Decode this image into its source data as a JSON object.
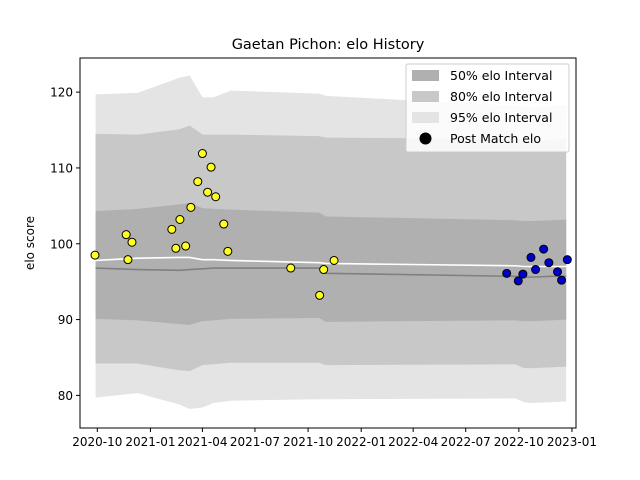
{
  "chart_data": {
    "type": "scatter",
    "title": "Gaetan Pichon: elo History",
    "xlabel": "",
    "ylabel": "elo score",
    "x_ticks": [
      "2020-10",
      "2021-01",
      "2021-04",
      "2021-07",
      "2021-10",
      "2022-01",
      "2022-04",
      "2022-07",
      "2022-10",
      "2023-01"
    ],
    "y_ticks": [
      80,
      90,
      100,
      110,
      120
    ],
    "xlim": [
      "2020-09-01",
      "2023-01-08"
    ],
    "ylim": [
      75.7,
      124.5
    ],
    "legend_position": "top-right",
    "legend": {
      "i50": "50% elo Interval",
      "i80": "80% elo Interval",
      "i95": "95% elo Interval",
      "post": "Post Match elo"
    },
    "colors": {
      "band50": "#b0b0b0",
      "band80": "#c8c8c8",
      "band95": "#e4e4e4",
      "mean_line": "#ffffff",
      "median_line": "#808080",
      "early_points": "#ffff22",
      "recent_points": "#0000cc"
    },
    "bands": {
      "dates": [
        "2020-09-28",
        "2020-12-10",
        "2021-02-20",
        "2021-03-10",
        "2021-04-01",
        "2021-04-20",
        "2021-05-20",
        "2021-10-20",
        "2021-11-01",
        "2022-09-25",
        "2022-10-10",
        "2022-10-25",
        "2022-11-25",
        "2022-12-22"
      ],
      "p95_hi": [
        119.7,
        119.9,
        121.9,
        122.2,
        119.3,
        119.3,
        120.2,
        119.8,
        119.5,
        118.2,
        118.1,
        118.0,
        118.2,
        118.3
      ],
      "p80_hi": [
        114.5,
        114.4,
        115.1,
        115.6,
        114.4,
        114.4,
        114.4,
        114.2,
        114.0,
        113.8,
        113.6,
        113.6,
        113.7,
        113.9
      ],
      "p50_hi": [
        104.3,
        104.6,
        105.2,
        105.4,
        104.7,
        104.6,
        104.5,
        104.1,
        103.6,
        103.1,
        103.0,
        103.0,
        103.1,
        103.2
      ],
      "p50_lo": [
        90.1,
        89.9,
        89.4,
        89.3,
        89.8,
        89.9,
        90.1,
        90.2,
        89.7,
        89.9,
        89.8,
        89.8,
        89.9,
        90.0
      ],
      "p80_lo": [
        84.2,
        84.2,
        83.3,
        83.2,
        84.0,
        84.1,
        84.3,
        84.3,
        84.0,
        84.1,
        83.6,
        83.6,
        83.7,
        83.8
      ],
      "p95_lo": [
        79.7,
        80.3,
        78.8,
        78.2,
        78.4,
        79.0,
        79.3,
        79.5,
        79.5,
        79.6,
        79.1,
        79.0,
        79.1,
        79.2
      ]
    },
    "series": [
      {
        "name": "Post Match elo",
        "kind": "scatter",
        "points": [
          {
            "x": "2020-09-27",
            "y": 98.5
          },
          {
            "x": "2020-11-20",
            "y": 101.2
          },
          {
            "x": "2020-11-23",
            "y": 97.9
          },
          {
            "x": "2020-11-30",
            "y": 100.2
          },
          {
            "x": "2021-02-07",
            "y": 101.9
          },
          {
            "x": "2021-02-14",
            "y": 99.4
          },
          {
            "x": "2021-02-21",
            "y": 103.2
          },
          {
            "x": "2021-03-03",
            "y": 99.7
          },
          {
            "x": "2021-03-12",
            "y": 104.8
          },
          {
            "x": "2021-03-24",
            "y": 108.2
          },
          {
            "x": "2021-04-01",
            "y": 111.9
          },
          {
            "x": "2021-04-10",
            "y": 106.8
          },
          {
            "x": "2021-04-16",
            "y": 110.1
          },
          {
            "x": "2021-04-24",
            "y": 106.2
          },
          {
            "x": "2021-05-08",
            "y": 102.6
          },
          {
            "x": "2021-05-15",
            "y": 99.0
          },
          {
            "x": "2021-09-01",
            "y": 96.8
          },
          {
            "x": "2021-10-21",
            "y": 93.2
          },
          {
            "x": "2021-10-28",
            "y": 96.6
          },
          {
            "x": "2021-11-15",
            "y": 97.8
          }
        ]
      },
      {
        "name": "Post Match elo",
        "kind": "scatter",
        "points": [
          {
            "x": "2022-09-10",
            "y": 96.1
          },
          {
            "x": "2022-09-30",
            "y": 95.1
          },
          {
            "x": "2022-10-08",
            "y": 96.0
          },
          {
            "x": "2022-10-22",
            "y": 98.2
          },
          {
            "x": "2022-10-30",
            "y": 96.6
          },
          {
            "x": "2022-11-13",
            "y": 99.3
          },
          {
            "x": "2022-11-22",
            "y": 97.5
          },
          {
            "x": "2022-12-07",
            "y": 96.3
          },
          {
            "x": "2022-12-14",
            "y": 95.2
          },
          {
            "x": "2022-12-24",
            "y": 97.9
          }
        ]
      },
      {
        "name": "",
        "kind": "line",
        "points": [
          {
            "x": "2020-09-28",
            "y": 97.8
          },
          {
            "x": "2020-12-10",
            "y": 98.1
          },
          {
            "x": "2021-02-20",
            "y": 98.2
          },
          {
            "x": "2021-03-10",
            "y": 98.2
          },
          {
            "x": "2021-04-01",
            "y": 97.9
          },
          {
            "x": "2021-04-20",
            "y": 97.9
          },
          {
            "x": "2021-05-20",
            "y": 97.8
          },
          {
            "x": "2021-10-20",
            "y": 97.5
          },
          {
            "x": "2021-11-01",
            "y": 97.4
          },
          {
            "x": "2022-09-25",
            "y": 97.1
          },
          {
            "x": "2022-10-10",
            "y": 97.0
          },
          {
            "x": "2022-10-25",
            "y": 97.0
          },
          {
            "x": "2022-11-25",
            "y": 97.0
          },
          {
            "x": "2022-12-22",
            "y": 97.0
          }
        ]
      },
      {
        "name": "",
        "kind": "line",
        "points": [
          {
            "x": "2020-09-28",
            "y": 96.8
          },
          {
            "x": "2020-12-10",
            "y": 96.6
          },
          {
            "x": "2021-02-20",
            "y": 96.5
          },
          {
            "x": "2021-03-10",
            "y": 96.6
          },
          {
            "x": "2021-04-01",
            "y": 96.7
          },
          {
            "x": "2021-04-20",
            "y": 96.8
          },
          {
            "x": "2021-05-20",
            "y": 96.8
          },
          {
            "x": "2021-10-20",
            "y": 96.8
          },
          {
            "x": "2021-11-01",
            "y": 96.1
          },
          {
            "x": "2022-09-25",
            "y": 95.7
          },
          {
            "x": "2022-10-10",
            "y": 95.6
          },
          {
            "x": "2022-10-25",
            "y": 95.6
          },
          {
            "x": "2022-11-25",
            "y": 95.7
          },
          {
            "x": "2022-12-22",
            "y": 95.7
          }
        ]
      }
    ]
  }
}
